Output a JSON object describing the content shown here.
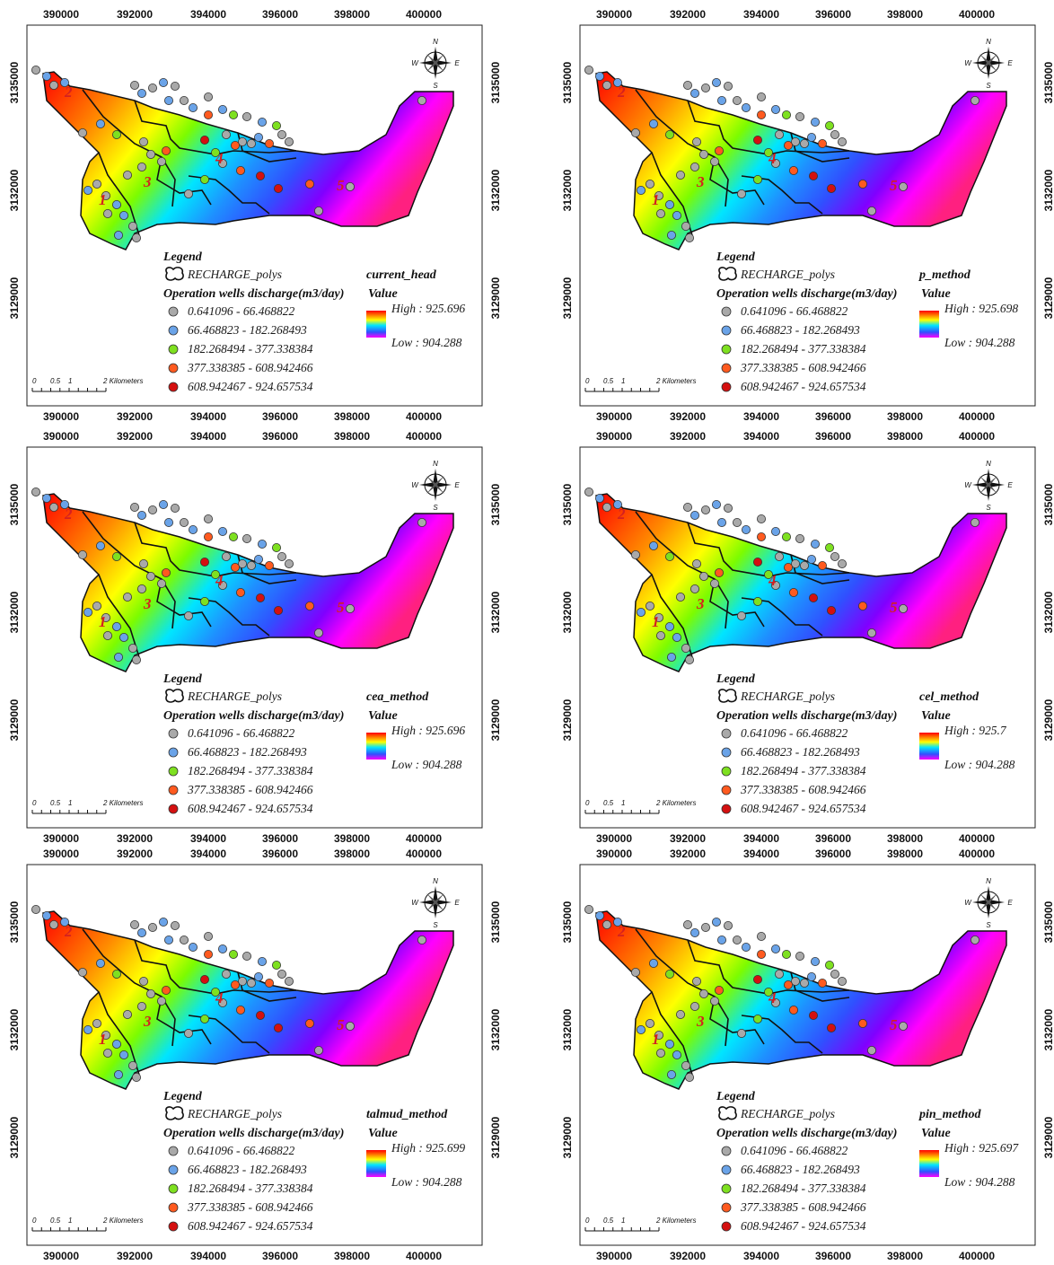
{
  "coords": {
    "x_ticks": [
      "390000",
      "392000",
      "394000",
      "396000",
      "398000",
      "400000"
    ],
    "y_ticks": [
      "3135000",
      "3132000",
      "3129000"
    ]
  },
  "legend": {
    "title": "Legend",
    "recharge_label": "RECHARGE_polys",
    "wells_title": "Operation wells discharge(m3/day)",
    "value_label": "Value",
    "classes": [
      {
        "label": "0.641096 - 66.468822",
        "color": "#a9a9a9"
      },
      {
        "label": "66.468823 - 182.268493",
        "color": "#6aa3e8"
      },
      {
        "label": "182.268494 - 377.338384",
        "color": "#7ee020"
      },
      {
        "label": "377.338385 - 608.942466",
        "color": "#ff5a1f"
      },
      {
        "label": "608.942467 - 924.657534",
        "color": "#d41010"
      }
    ],
    "low_label": "Low : 904.288"
  },
  "scalebar": {
    "ticks": [
      "0",
      "0.5",
      "1",
      "2 Kilometers"
    ]
  },
  "compass": {
    "n": "N",
    "s": "S",
    "e": "E",
    "w": "W"
  },
  "zone_labels": [
    "2",
    "3",
    "4",
    "5",
    "1"
  ],
  "panels": [
    {
      "method": "current_head",
      "high_label": "High : 925.696"
    },
    {
      "method": "p_method",
      "high_label": "High : 925.698"
    },
    {
      "method": "cea_method",
      "high_label": "High : 925.696"
    },
    {
      "method": "cel_method",
      "high_label": "High : 925.7"
    },
    {
      "method": "talmud_method",
      "high_label": "High : 925.699"
    },
    {
      "method": "pin_method",
      "high_label": "High : 925.697"
    }
  ],
  "colors": {
    "ramp": [
      "#ff0000",
      "#ff8c00",
      "#ffff00",
      "#7cfc00",
      "#00e5ff",
      "#1e90ff",
      "#3030ff",
      "#8000ff",
      "#ff00ff",
      "#ff2080"
    ],
    "outline": "#111111"
  }
}
